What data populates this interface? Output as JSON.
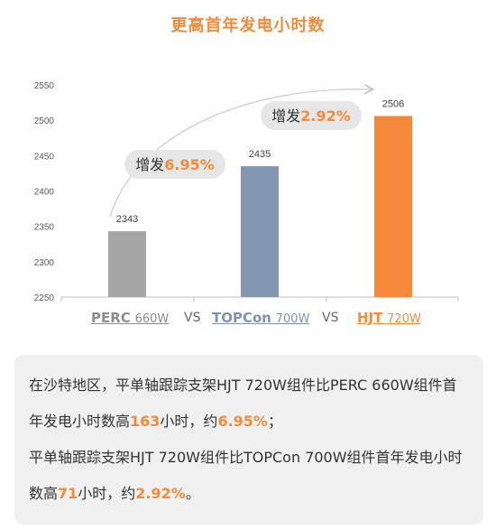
{
  "title": "更高首年发电小时数",
  "chart_data": {
    "type": "bar",
    "categories": [
      "PERC 660W",
      "TOPCon 700W",
      "HJT 720W"
    ],
    "values": [
      2343,
      2435,
      2506
    ],
    "data_labels": [
      "2343",
      "2435",
      "2506"
    ],
    "colors": [
      "#a6a6a6",
      "#8497b0",
      "#f5883a"
    ],
    "ylim": [
      2250,
      2550
    ],
    "yticks": [
      "2250",
      "2300",
      "2350",
      "2400",
      "2450",
      "2500",
      "2550"
    ],
    "grid": false,
    "annotations": [
      {
        "prefix": "增发",
        "value": "6.95%"
      },
      {
        "prefix": "增发",
        "value": "2.92%"
      }
    ]
  },
  "legend": [
    {
      "name": "PERC",
      "spec": "660W",
      "color": "#8c8c8c"
    },
    {
      "name": "TOPCon",
      "spec": "700W",
      "color": "#7b93b3"
    },
    {
      "name": "HJT",
      "spec": "720W",
      "color": "#f58a3a"
    }
  ],
  "vs": "VS",
  "note": {
    "p1": "在沙特地区，平单轴跟踪支架HJT 720W组件比PERC 660W组件首年发电小时数高",
    "h1": "163",
    "p2": "小时，约",
    "h2": "6.95%",
    "p3": "；",
    "p4": "平单轴跟踪支架HJT 720W组件比TOPCon 700W组件首年发电小时数高",
    "h3": "71",
    "p5": "小时，约",
    "h4": "2.92%",
    "p6": "。"
  }
}
